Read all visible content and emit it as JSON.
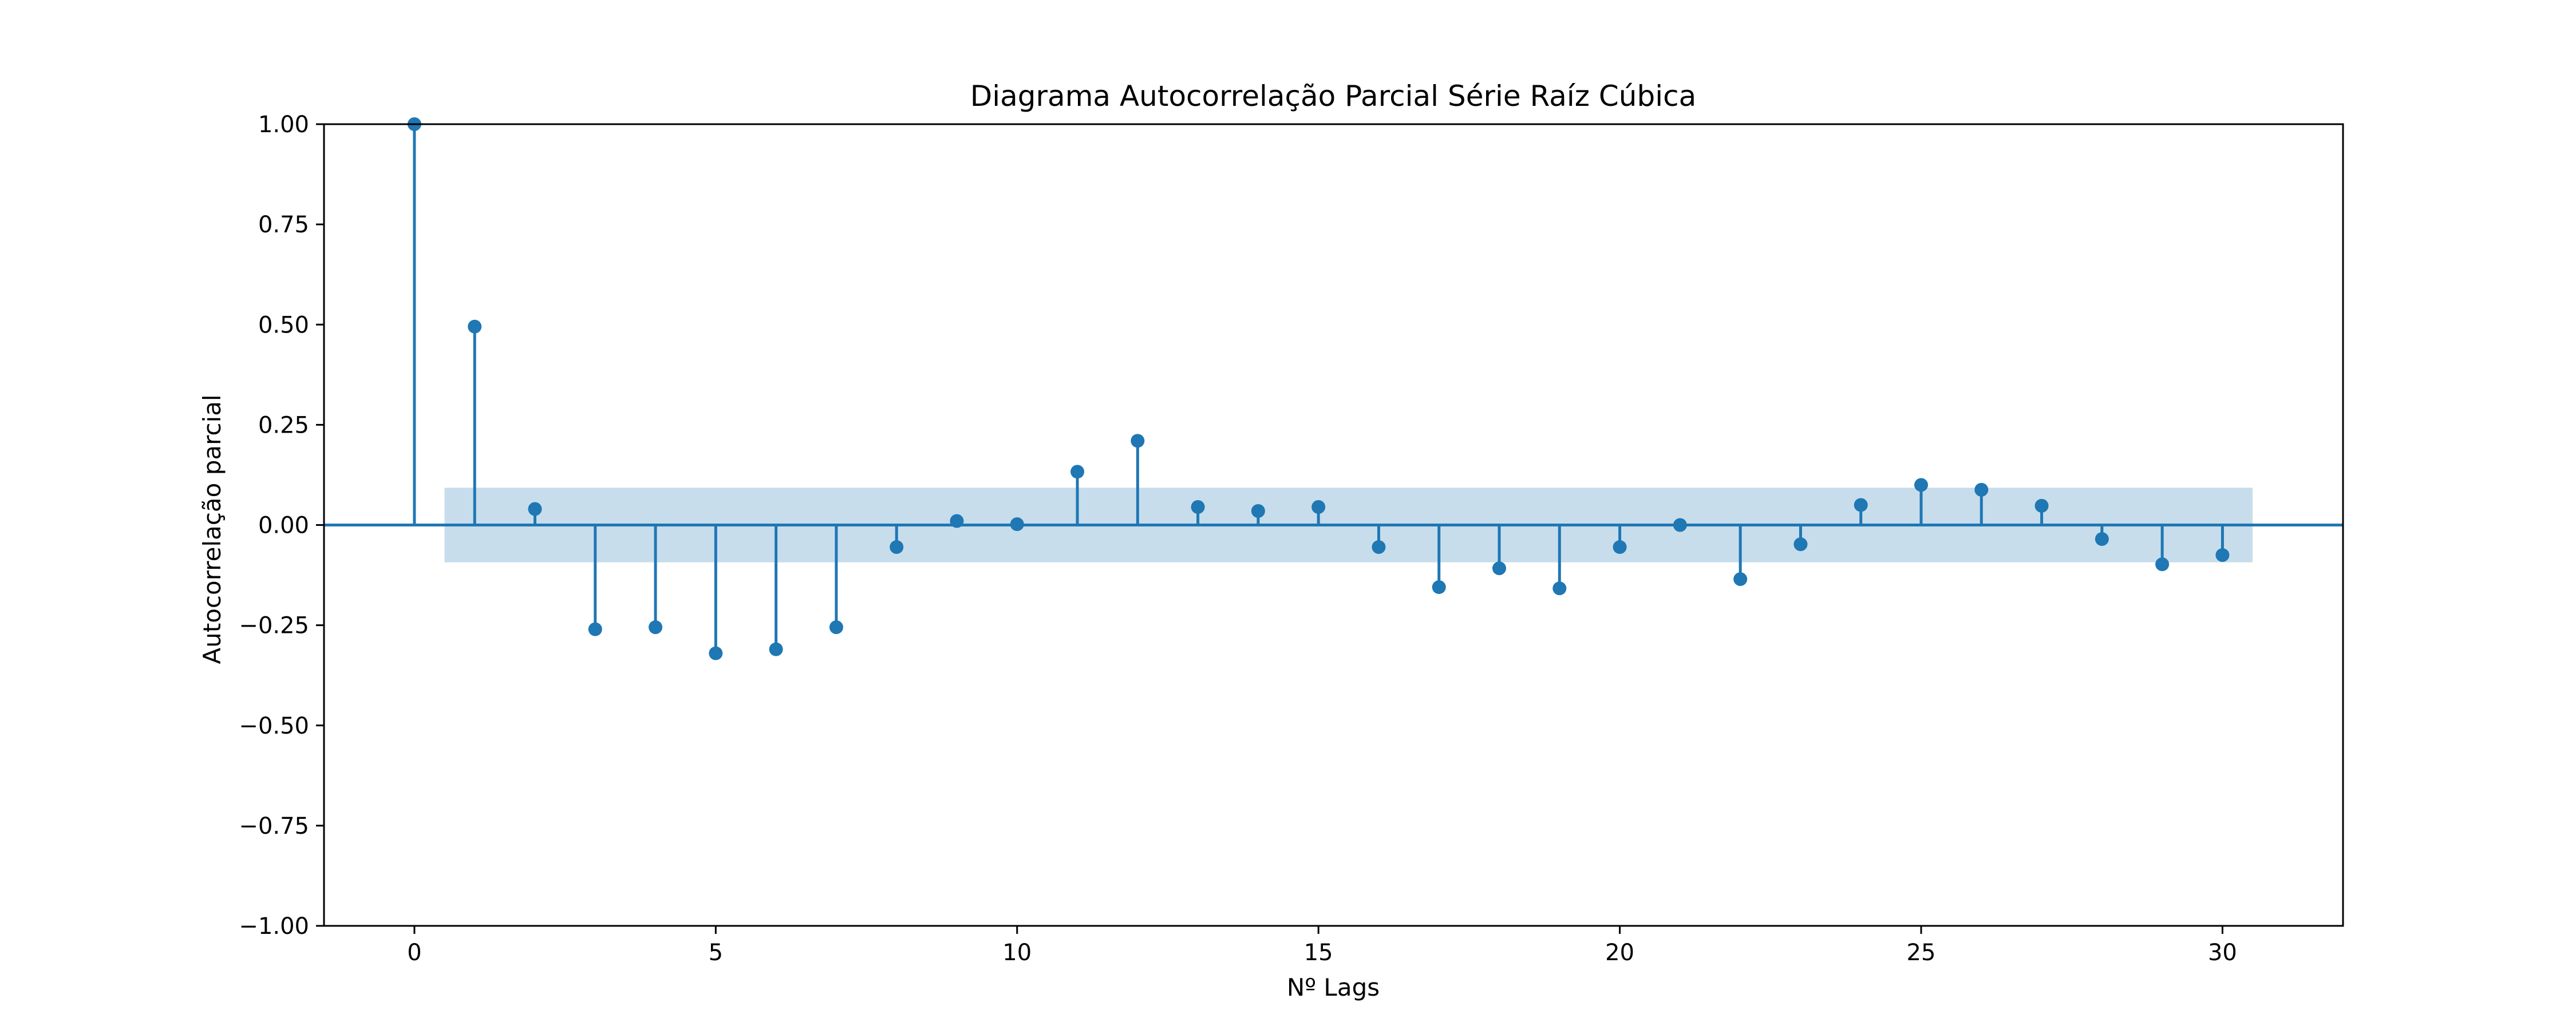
{
  "chart_data": {
    "type": "stem",
    "title": "Diagrama Autocorrelação Parcial Série Raíz Cúbica",
    "xlabel": "Nº Lags",
    "ylabel": "Autocorrelação parcial",
    "xlim": [
      -1.5,
      32.0
    ],
    "ylim": [
      -1.0,
      1.0
    ],
    "x_ticks": [
      0,
      5,
      10,
      15,
      20,
      25,
      30
    ],
    "x_tick_labels": [
      "0",
      "5",
      "10",
      "15",
      "20",
      "25",
      "30"
    ],
    "y_ticks": [
      -1.0,
      -0.75,
      -0.5,
      -0.25,
      0.0,
      0.25,
      0.5,
      0.75,
      1.0
    ],
    "y_tick_labels": [
      "−1.00",
      "−0.75",
      "−0.50",
      "−0.25",
      "0.00",
      "0.25",
      "0.50",
      "0.75",
      "1.00"
    ],
    "grid": false,
    "confidence_band": {
      "x_range": [
        0.5,
        30.5
      ],
      "upper": 0.093,
      "lower": -0.093
    },
    "lags": [
      0,
      1,
      2,
      3,
      4,
      5,
      6,
      7,
      8,
      9,
      10,
      11,
      12,
      13,
      14,
      15,
      16,
      17,
      18,
      19,
      20,
      21,
      22,
      23,
      24,
      25,
      26,
      27,
      28,
      29,
      30
    ],
    "values": [
      1.0,
      0.495,
      0.04,
      -0.26,
      -0.255,
      -0.32,
      -0.31,
      -0.255,
      -0.055,
      0.01,
      0.002,
      0.133,
      0.21,
      0.045,
      0.035,
      0.045,
      -0.055,
      -0.155,
      -0.108,
      -0.158,
      -0.055,
      0.0,
      -0.135,
      -0.048,
      0.05,
      0.1,
      0.088,
      0.048,
      -0.035,
      -0.098,
      -0.075
    ]
  },
  "colors": {
    "stem": "#1f77b4",
    "band": "#1f77b4",
    "band_opacity": 0.25,
    "axes": "#000000"
  }
}
